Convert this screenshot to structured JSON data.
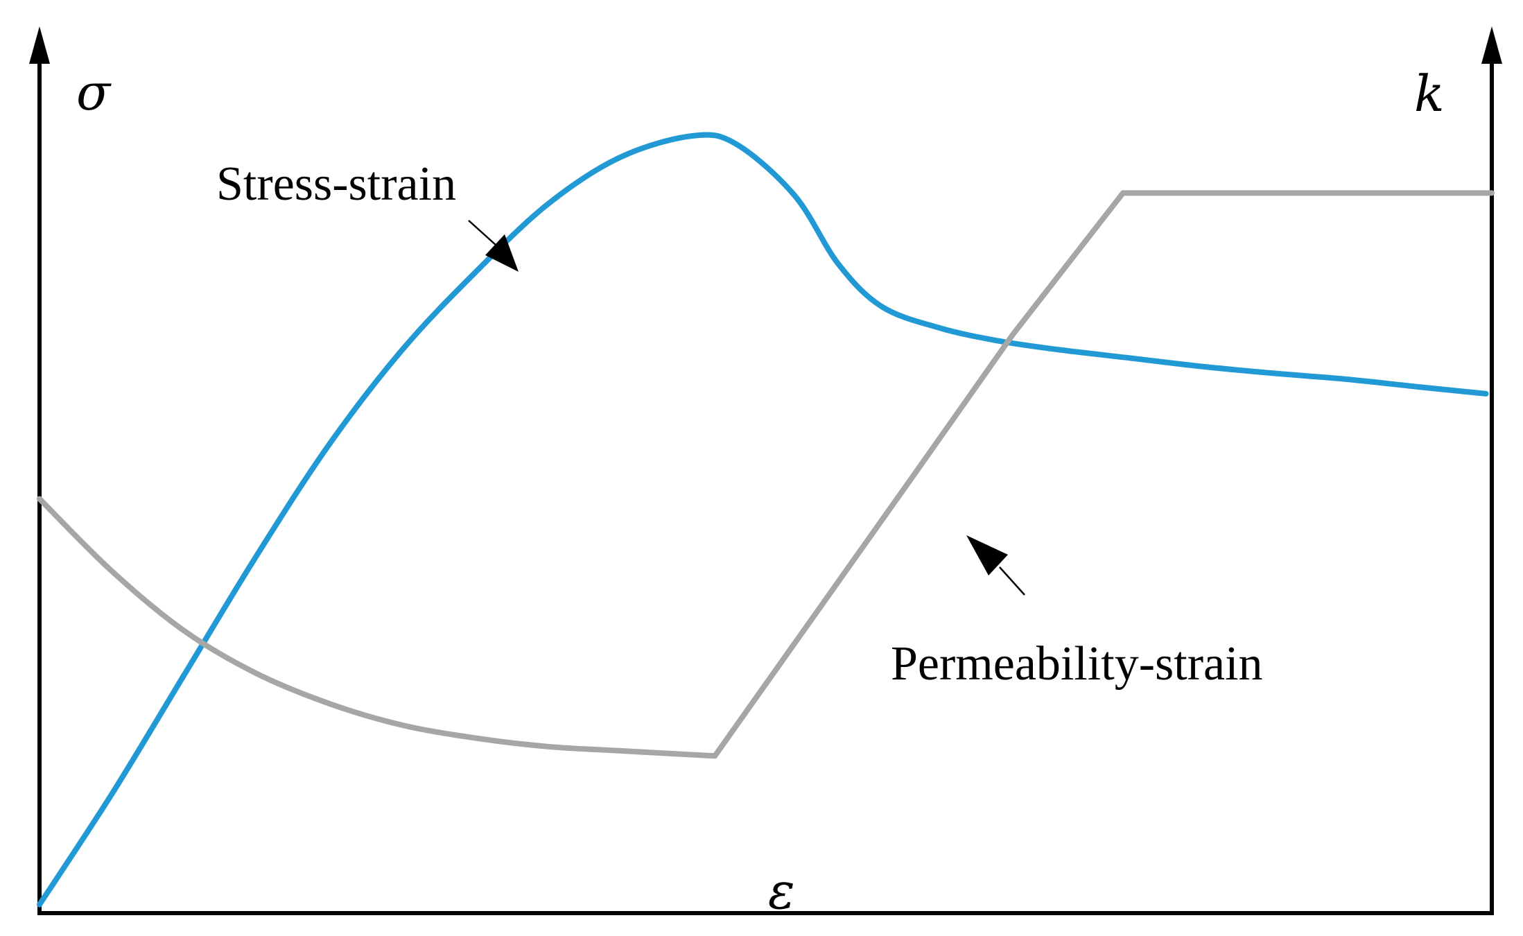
{
  "chart_data": {
    "type": "line",
    "axes": {
      "left_symbol": "σ",
      "right_symbol": "k",
      "bottom_symbol": "ε"
    },
    "tick_labels": "none",
    "grid": false,
    "xlim": [
      0,
      100
    ],
    "ylim_left": [
      0,
      100
    ],
    "ylim_right": [
      0,
      100
    ],
    "note_units": "schematic curves, values normalized 0-100 of axis span",
    "annotations": [
      {
        "text": "Stress-strain",
        "points_to_series": 0
      },
      {
        "text": "Permeability-strain",
        "points_to_series": 1
      }
    ],
    "series": [
      {
        "axis": "left",
        "color": "#2199d4",
        "points": [
          [
            0,
            1
          ],
          [
            5,
            14
          ],
          [
            10,
            28
          ],
          [
            15,
            42
          ],
          [
            20,
            55
          ],
          [
            25,
            66
          ],
          [
            30,
            75
          ],
          [
            35,
            83
          ],
          [
            40,
            88.5
          ],
          [
            45,
            91
          ],
          [
            48,
            90
          ],
          [
            52,
            84
          ],
          [
            55,
            76
          ],
          [
            58,
            71
          ],
          [
            62,
            68.5
          ],
          [
            66,
            67
          ],
          [
            70,
            66
          ],
          [
            75,
            65
          ],
          [
            80,
            64
          ],
          [
            85,
            63.2
          ],
          [
            90,
            62.5
          ],
          [
            95,
            61.6
          ],
          [
            99.6,
            60.8
          ]
        ]
      },
      {
        "axis": "right",
        "color": "#a6a6a6",
        "points": [
          [
            0,
            48.5
          ],
          [
            5,
            40
          ],
          [
            10,
            33
          ],
          [
            15,
            28
          ],
          [
            20,
            24.5
          ],
          [
            25,
            22
          ],
          [
            30,
            20.5
          ],
          [
            35,
            19.5
          ],
          [
            40,
            19
          ],
          [
            46.5,
            18.4
          ],
          [
            60,
            50.8
          ],
          [
            67,
            67.7
          ],
          [
            74.6,
            84.3
          ],
          [
            85,
            84.3
          ],
          [
            100,
            84.3
          ]
        ]
      }
    ]
  }
}
